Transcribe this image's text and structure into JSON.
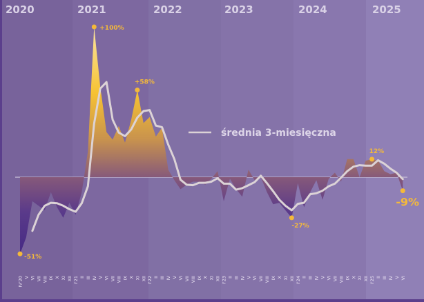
{
  "chart_data": {
    "type": "area",
    "title": "",
    "xlabel": "",
    "ylabel": "",
    "ylim": [
      -51,
      100
    ],
    "grid": false,
    "legend_placement": "center",
    "years": [
      "2020",
      "2021",
      "2022",
      "2023",
      "2024",
      "2025"
    ],
    "categories": [
      "IV'20",
      "V",
      "VI",
      "VII",
      "VIII",
      "IX",
      "X",
      "XI",
      "XII",
      "I'21",
      "II",
      "III",
      "IV",
      "V",
      "VI",
      "VII",
      "VIII",
      "IX",
      "X",
      "XI",
      "XII",
      "I'22",
      "II",
      "III",
      "IV",
      "V",
      "VI",
      "VII",
      "VIII",
      "IX",
      "X",
      "XI",
      "XII",
      "I'23",
      "II",
      "III",
      "IV",
      "V",
      "VI",
      "VII",
      "VIII",
      "IX",
      "X",
      "XI",
      "XII",
      "I'24",
      "II",
      "III",
      "IV",
      "V",
      "VI",
      "VII",
      "VIII",
      "IX",
      "X",
      "XI",
      "XII",
      "I'25",
      "II",
      "III",
      "IV",
      "V",
      "VI"
    ],
    "series": [
      {
        "type": "area",
        "unit": "%",
        "values": [
          -51,
          -40,
          -16,
          -19,
          -22,
          -10,
          -20,
          -27,
          -17,
          -25,
          -10,
          17,
          100,
          60,
          30,
          25,
          34,
          23,
          38,
          58,
          36,
          40,
          27,
          33,
          5,
          -2,
          -8,
          -5,
          -3,
          -3,
          -5,
          -1,
          4,
          -16,
          -1,
          -8,
          -13,
          5,
          -2,
          0,
          -10,
          -18,
          -17,
          -22,
          -27,
          -4,
          -20,
          -10,
          -2,
          -15,
          -1,
          3,
          -3,
          12,
          12,
          0,
          11,
          12,
          11,
          4,
          2,
          3,
          -9
        ]
      },
      {
        "type": "line",
        "name": "średnia 3-miesięczna",
        "values": [
          null,
          null,
          -35.7,
          -25,
          -19,
          -17,
          -17.3,
          -19,
          -21.3,
          -23,
          -17.3,
          -6,
          35.7,
          59,
          63.3,
          38.3,
          29.7,
          27.3,
          31.7,
          39.7,
          44,
          44.7,
          34.3,
          33.3,
          21.7,
          12,
          -1.7,
          -5,
          -5.3,
          -3.7,
          -3.7,
          -3,
          -0.7,
          -4.3,
          -4.3,
          -8.3,
          -7.3,
          -5.3,
          -3.3,
          1,
          -4,
          -9.3,
          -15,
          -19,
          -22,
          -17.7,
          -17,
          -11.3,
          -10.7,
          -9,
          -6,
          -4.3,
          -0.3,
          4,
          7,
          8,
          7.7,
          7.7,
          11.3,
          9,
          5.7,
          3,
          -1.3
        ]
      }
    ],
    "annotations": [
      {
        "index": 0,
        "value": -51,
        "label": "-51%"
      },
      {
        "index": 12,
        "value": 100,
        "label": "+100%"
      },
      {
        "index": 19,
        "value": 58,
        "label": "+58%"
      },
      {
        "index": 44,
        "value": -27,
        "label": "-27%"
      },
      {
        "index": 57,
        "value": 12,
        "label": "12%"
      },
      {
        "index": 62,
        "value": -9,
        "label": "-9%"
      }
    ],
    "colors": {
      "positive_fill": "#f6c233",
      "negative_fill": "#4b2d86",
      "line": "#d8d0d8",
      "annotation": "#f4b93a",
      "zero_line": "#c9bfd8"
    }
  }
}
